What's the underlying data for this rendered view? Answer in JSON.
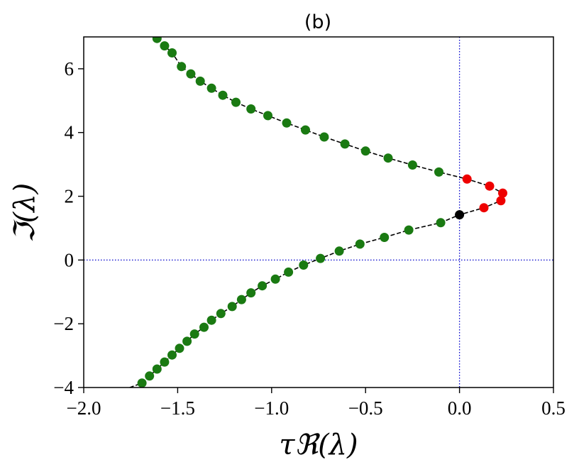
{
  "chart_data": {
    "type": "scatter",
    "title": "(b)",
    "xlabel": "τℜ(λ)",
    "ylabel": "ℑ(λ)",
    "xlim": [
      -2.0,
      0.5
    ],
    "ylim": [
      -4,
      7
    ],
    "xticks": [
      -2.0,
      -1.5,
      -1.0,
      -0.5,
      0.0,
      0.5
    ],
    "xtick_labels": [
      "−2.0",
      "−1.5",
      "−1.0",
      "−0.5",
      "0.0",
      "0.5"
    ],
    "yticks": [
      -4,
      -2,
      0,
      2,
      4,
      6
    ],
    "ytick_labels": [
      "−4",
      "−2",
      "0",
      "2",
      "4",
      "6"
    ],
    "grid": false,
    "reference_lines": {
      "x": 0,
      "y": 0,
      "color": "#0000cc",
      "style": "dotted"
    },
    "curve": {
      "color": "#000000",
      "style": "dashed"
    },
    "series": [
      {
        "color": "#1a7a12",
        "points": [
          [
            -1.61,
            6.95
          ],
          [
            -1.57,
            6.72
          ],
          [
            -1.53,
            6.5
          ],
          [
            -1.48,
            6.07
          ],
          [
            -1.43,
            5.84
          ],
          [
            -1.38,
            5.61
          ],
          [
            -1.32,
            5.39
          ],
          [
            -1.26,
            5.17
          ],
          [
            -1.19,
            4.95
          ],
          [
            -1.11,
            4.74
          ],
          [
            -1.02,
            4.53
          ],
          [
            -0.92,
            4.3
          ],
          [
            -0.82,
            4.08
          ],
          [
            -0.72,
            3.86
          ],
          [
            -0.61,
            3.64
          ],
          [
            -0.5,
            3.42
          ],
          [
            -0.38,
            3.2
          ],
          [
            -0.25,
            2.98
          ],
          [
            -0.11,
            2.76
          ],
          [
            -0.1,
            1.17
          ],
          [
            -0.27,
            0.94
          ],
          [
            -0.4,
            0.71
          ],
          [
            -0.53,
            0.5
          ],
          [
            -0.64,
            0.28
          ],
          [
            -0.74,
            0.05
          ],
          [
            -0.83,
            -0.16
          ],
          [
            -0.91,
            -0.38
          ],
          [
            -0.98,
            -0.6
          ],
          [
            -1.05,
            -0.81
          ],
          [
            -1.11,
            -1.03
          ],
          [
            -1.16,
            -1.24
          ],
          [
            -1.21,
            -1.46
          ],
          [
            -1.27,
            -1.68
          ],
          [
            -1.32,
            -1.89
          ],
          [
            -1.36,
            -2.11
          ],
          [
            -1.41,
            -2.32
          ],
          [
            -1.45,
            -2.55
          ],
          [
            -1.49,
            -2.77
          ],
          [
            -1.53,
            -2.98
          ],
          [
            -1.57,
            -3.2
          ],
          [
            -1.61,
            -3.42
          ],
          [
            -1.65,
            -3.64
          ],
          [
            -1.69,
            -3.86
          ]
        ]
      },
      {
        "color": "#ee0000",
        "points": [
          [
            0.04,
            2.54
          ],
          [
            0.16,
            2.32
          ],
          [
            0.23,
            2.1
          ],
          [
            0.22,
            1.86
          ],
          [
            0.13,
            1.64
          ]
        ]
      },
      {
        "color": "#000000",
        "points": [
          [
            0.0,
            1.42
          ]
        ]
      }
    ],
    "line_path": [
      [
        -1.61,
        6.95
      ],
      [
        -1.57,
        6.72
      ],
      [
        -1.53,
        6.5
      ],
      [
        -1.48,
        6.07
      ],
      [
        -1.43,
        5.84
      ],
      [
        -1.38,
        5.61
      ],
      [
        -1.32,
        5.39
      ],
      [
        -1.26,
        5.17
      ],
      [
        -1.19,
        4.95
      ],
      [
        -1.11,
        4.74
      ],
      [
        -1.02,
        4.53
      ],
      [
        -0.92,
        4.3
      ],
      [
        -0.82,
        4.08
      ],
      [
        -0.72,
        3.86
      ],
      [
        -0.61,
        3.64
      ],
      [
        -0.5,
        3.42
      ],
      [
        -0.38,
        3.2
      ],
      [
        -0.25,
        2.98
      ],
      [
        -0.11,
        2.76
      ],
      [
        0.04,
        2.54
      ],
      [
        0.16,
        2.32
      ],
      [
        0.23,
        2.1
      ],
      [
        0.22,
        1.86
      ],
      [
        0.13,
        1.64
      ],
      [
        0.0,
        1.42
      ],
      [
        -0.1,
        1.17
      ],
      [
        -0.27,
        0.94
      ],
      [
        -0.4,
        0.71
      ],
      [
        -0.53,
        0.5
      ],
      [
        -0.64,
        0.28
      ],
      [
        -0.74,
        0.05
      ],
      [
        -0.83,
        -0.16
      ],
      [
        -0.91,
        -0.38
      ],
      [
        -0.98,
        -0.6
      ],
      [
        -1.05,
        -0.81
      ],
      [
        -1.11,
        -1.03
      ],
      [
        -1.16,
        -1.24
      ],
      [
        -1.21,
        -1.46
      ],
      [
        -1.27,
        -1.68
      ],
      [
        -1.32,
        -1.89
      ],
      [
        -1.36,
        -2.11
      ],
      [
        -1.41,
        -2.32
      ],
      [
        -1.45,
        -2.55
      ],
      [
        -1.49,
        -2.77
      ],
      [
        -1.53,
        -2.98
      ],
      [
        -1.57,
        -3.2
      ],
      [
        -1.61,
        -3.42
      ],
      [
        -1.65,
        -3.64
      ],
      [
        -1.69,
        -3.86
      ],
      [
        -1.8,
        -4.1
      ]
    ]
  }
}
